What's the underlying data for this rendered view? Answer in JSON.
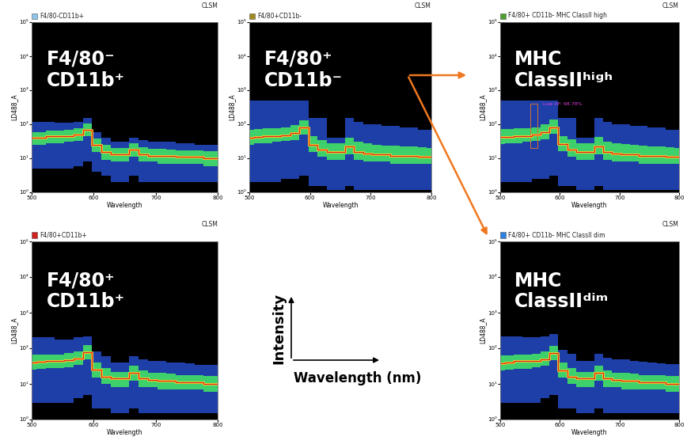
{
  "chart_data": [
    {
      "type": "density",
      "title": "F4/80-CD11b+",
      "subtitle": "CLSM",
      "color": "#8ec5ea",
      "annotation": "F4/80⁻\nCD11b⁺",
      "x_label": "Wavelength",
      "y_label": "LD488_A",
      "log": "y",
      "xlim": [
        500,
        800
      ],
      "xticks": [
        500,
        600,
        700,
        800
      ],
      "ylim": [
        1,
        100000
      ],
      "yticks": [
        {
          "value": 1,
          "label": "10⁰"
        },
        {
          "value": 10,
          "label": "10¹"
        },
        {
          "value": 100,
          "label": "10²"
        },
        {
          "value": 1000,
          "label": "10³"
        },
        {
          "value": 10000,
          "label": "10⁴"
        },
        {
          "value": 100000,
          "label": "10⁵"
        }
      ],
      "x": [
        500,
        515,
        530,
        545,
        560,
        575,
        590,
        605,
        620,
        635,
        650,
        665,
        680,
        695,
        710,
        725,
        740,
        755,
        770,
        785,
        800
      ],
      "low": [
        5,
        5,
        5,
        5,
        5,
        6,
        8,
        4,
        3,
        2,
        2,
        3,
        2,
        2,
        2,
        2,
        2,
        2,
        2,
        2,
        2
      ],
      "high": [
        120,
        120,
        120,
        110,
        110,
        120,
        150,
        60,
        40,
        30,
        30,
        40,
        35,
        30,
        30,
        30,
        28,
        28,
        25,
        25,
        25
      ],
      "core_low": [
        25,
        25,
        28,
        28,
        30,
        33,
        45,
        15,
        9,
        8,
        8,
        11,
        8,
        8,
        7,
        7,
        7,
        7,
        7,
        6,
        6
      ],
      "core_high": [
        60,
        60,
        65,
        65,
        68,
        75,
        105,
        38,
        25,
        20,
        20,
        28,
        21,
        19,
        19,
        18,
        17,
        17,
        17,
        16,
        16
      ],
      "median": [
        40,
        40,
        45,
        45,
        45,
        50,
        70,
        25,
        15,
        13,
        13,
        18,
        13,
        12,
        12,
        12,
        11,
        11,
        11,
        10,
        10
      ]
    },
    {
      "type": "density",
      "title": "F4/80+CD11b-",
      "subtitle": "CLSM",
      "color": "#a08a20",
      "annotation": "F4/80⁺\nCD11b⁻",
      "x_label": "Wavelength",
      "y_label": "LD488_A",
      "log": "y",
      "xlim": [
        500,
        800
      ],
      "xticks": [
        500,
        600,
        700,
        800
      ],
      "ylim": [
        1,
        100000
      ],
      "yticks": [
        {
          "value": 1,
          "label": "10⁰"
        },
        {
          "value": 10,
          "label": "10¹"
        },
        {
          "value": 100,
          "label": "10²"
        },
        {
          "value": 1000,
          "label": "10³"
        },
        {
          "value": 10000,
          "label": "10⁴"
        },
        {
          "value": 100000,
          "label": "10⁵"
        }
      ],
      "x": [
        500,
        515,
        530,
        545,
        560,
        575,
        590,
        605,
        620,
        635,
        650,
        665,
        680,
        695,
        710,
        725,
        740,
        755,
        770,
        785,
        800
      ],
      "low": [
        2,
        2,
        2,
        2,
        2.5,
        2.5,
        3,
        1.5,
        1.5,
        1.2,
        1.2,
        1.5,
        1.2,
        1.2,
        1.2,
        1.2,
        1.2,
        1.2,
        1.2,
        1.2,
        1.2
      ],
      "high": [
        500,
        500,
        500,
        500,
        500,
        500,
        500,
        150,
        150,
        40,
        40,
        150,
        120,
        100,
        100,
        90,
        90,
        80,
        80,
        70,
        70
      ],
      "core_low": [
        25,
        27,
        28,
        30,
        32,
        35,
        50,
        15,
        11,
        9,
        9,
        13,
        9,
        8,
        8,
        8,
        7,
        7,
        7,
        7,
        7
      ],
      "core_high": [
        70,
        72,
        75,
        75,
        80,
        95,
        130,
        45,
        35,
        28,
        28,
        40,
        30,
        27,
        25,
        24,
        23,
        22,
        22,
        21,
        20
      ],
      "median": [
        40,
        42,
        45,
        45,
        48,
        55,
        80,
        25,
        18,
        15,
        15,
        22,
        15,
        14,
        13,
        13,
        12,
        12,
        12,
        11,
        11
      ]
    },
    {
      "type": "density",
      "title": "F4/80+CD11b+",
      "subtitle": "CLSM",
      "color": "#d02020",
      "annotation": "F4/80⁺\nCD11b⁺",
      "x_label": "Wavelength",
      "y_label": "LD488_A",
      "log": "y",
      "xlim": [
        500,
        800
      ],
      "xticks": [
        500,
        600,
        700,
        800
      ],
      "ylim": [
        1,
        100000
      ],
      "yticks": [
        {
          "value": 1,
          "label": "10⁰"
        },
        {
          "value": 10,
          "label": "10¹"
        },
        {
          "value": 100,
          "label": "10²"
        },
        {
          "value": 1000,
          "label": "10³"
        },
        {
          "value": 10000,
          "label": "10⁴"
        },
        {
          "value": 100000,
          "label": "10⁵"
        }
      ],
      "x": [
        500,
        515,
        530,
        545,
        560,
        575,
        590,
        605,
        620,
        635,
        650,
        665,
        680,
        695,
        710,
        725,
        740,
        755,
        770,
        785,
        800
      ],
      "low": [
        3,
        3,
        3,
        3,
        3,
        4,
        5,
        2,
        2,
        1.5,
        1.5,
        2,
        1.5,
        1.5,
        1.5,
        1.5,
        1.5,
        1.5,
        1.5,
        1.5,
        1.5
      ],
      "high": [
        200,
        200,
        200,
        180,
        180,
        200,
        220,
        80,
        60,
        40,
        40,
        60,
        50,
        45,
        45,
        40,
        40,
        38,
        35,
        35,
        35
      ],
      "core_low": [
        25,
        26,
        28,
        28,
        30,
        34,
        48,
        15,
        10,
        8,
        8,
        12,
        8,
        8,
        7,
        7,
        7,
        7,
        7,
        6,
        6
      ],
      "core_high": [
        65,
        65,
        68,
        68,
        72,
        82,
        120,
        40,
        28,
        22,
        22,
        32,
        24,
        21,
        20,
        19,
        18,
        18,
        18,
        17,
        17
      ],
      "median": [
        40,
        41,
        44,
        44,
        46,
        52,
        78,
        25,
        16,
        14,
        14,
        20,
        14,
        13,
        12,
        12,
        11,
        11,
        11,
        10,
        10
      ]
    },
    {
      "type": "density",
      "title": "F4/80+ CD11b- MHC ClassII high",
      "subtitle": "CLSM",
      "color": "#50a030",
      "annotation": "MHC\nClassIIʰⁱᵍʰ",
      "x_label": "Wavelength",
      "y_label": "LD488_A",
      "log": "y",
      "xlim": [
        500,
        800
      ],
      "xticks": [
        500,
        600,
        700,
        800
      ],
      "ylim": [
        1,
        100000
      ],
      "yticks": [
        {
          "value": 1,
          "label": "10⁰"
        },
        {
          "value": 10,
          "label": "10¹"
        },
        {
          "value": 100,
          "label": "10²"
        },
        {
          "value": 1000,
          "label": "10³"
        },
        {
          "value": 10000,
          "label": "10⁴"
        },
        {
          "value": 100000,
          "label": "10⁵"
        }
      ],
      "x": [
        500,
        515,
        530,
        545,
        560,
        575,
        590,
        605,
        620,
        635,
        650,
        665,
        680,
        695,
        710,
        725,
        740,
        755,
        770,
        785,
        800
      ],
      "low": [
        2,
        2,
        2,
        2,
        2.5,
        2.5,
        3,
        1.5,
        1.5,
        1.2,
        1.2,
        1.5,
        1.2,
        1.2,
        1.2,
        1.2,
        1.2,
        1.2,
        1.2,
        1.2,
        1.2
      ],
      "high": [
        500,
        500,
        500,
        500,
        500,
        500,
        500,
        150,
        150,
        40,
        40,
        150,
        120,
        100,
        100,
        90,
        90,
        80,
        80,
        70,
        70
      ],
      "core_low": [
        26,
        27,
        28,
        30,
        32,
        36,
        52,
        16,
        11,
        9,
        9,
        13,
        9,
        8,
        8,
        8,
        7,
        7,
        7,
        7,
        7
      ],
      "core_high": [
        72,
        74,
        76,
        78,
        82,
        98,
        135,
        46,
        36,
        28,
        28,
        42,
        30,
        27,
        26,
        25,
        23,
        22,
        22,
        21,
        20
      ],
      "median": [
        42,
        43,
        46,
        46,
        50,
        57,
        82,
        26,
        18,
        15,
        15,
        22,
        15,
        14,
        13,
        13,
        12,
        12,
        12,
        11,
        11
      ],
      "gate": {
        "label": "Low AF: 98.78%",
        "x": [
          550,
          562
        ],
        "y": [
          20,
          400
        ]
      }
    },
    {
      "type": "density",
      "title": "F4/80+ CD11b- MHC ClassII dim",
      "subtitle": "CLSM",
      "color": "#3080e0",
      "annotation": "MHC\nClassIIᵈⁱᵐ",
      "x_label": "Wavelength",
      "y_label": "LD488_A",
      "log": "y",
      "xlim": [
        500,
        800
      ],
      "xticks": [
        500,
        600,
        700,
        800
      ],
      "ylim": [
        1,
        100000
      ],
      "yticks": [
        {
          "value": 1,
          "label": "10⁰"
        },
        {
          "value": 10,
          "label": "10¹"
        },
        {
          "value": 100,
          "label": "10²"
        },
        {
          "value": 1000,
          "label": "10³"
        },
        {
          "value": 10000,
          "label": "10⁴"
        },
        {
          "value": 100000,
          "label": "10⁵"
        }
      ],
      "x": [
        500,
        515,
        530,
        545,
        560,
        575,
        590,
        605,
        620,
        635,
        650,
        665,
        680,
        695,
        710,
        725,
        740,
        755,
        770,
        785,
        800
      ],
      "low": [
        3,
        3,
        3,
        3,
        3,
        4,
        5,
        2,
        2,
        1.5,
        1.5,
        2,
        1.5,
        1.5,
        1.5,
        1.5,
        1.5,
        1.5,
        1.5,
        1.5,
        1.5
      ],
      "high": [
        220,
        220,
        220,
        200,
        200,
        220,
        250,
        90,
        70,
        45,
        45,
        70,
        55,
        50,
        48,
        45,
        42,
        40,
        38,
        36,
        36
      ],
      "core_low": [
        24,
        25,
        27,
        27,
        29,
        33,
        46,
        15,
        10,
        8,
        8,
        12,
        8,
        8,
        7,
        7,
        7,
        7,
        7,
        6,
        6
      ],
      "core_high": [
        62,
        64,
        66,
        66,
        70,
        80,
        115,
        40,
        28,
        22,
        22,
        32,
        24,
        21,
        20,
        19,
        18,
        18,
        18,
        17,
        17
      ],
      "median": [
        38,
        40,
        43,
        43,
        45,
        50,
        75,
        24,
        16,
        14,
        14,
        20,
        14,
        13,
        12,
        12,
        11,
        11,
        11,
        10,
        10
      ]
    }
  ],
  "key": {
    "y_label": "Intensity",
    "x_label": "Wavelength (nm)"
  }
}
